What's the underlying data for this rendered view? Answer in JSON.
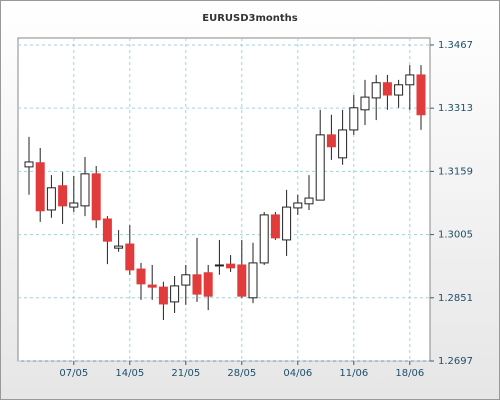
{
  "chart_data": {
    "type": "candlestick",
    "title": "EURUSD3months",
    "categories": [
      null,
      null,
      null,
      null,
      "07/05",
      null,
      null,
      null,
      null,
      "14/05",
      null,
      null,
      null,
      null,
      "21/05",
      null,
      null,
      null,
      null,
      "28/05",
      null,
      null,
      null,
      null,
      "04/06",
      null,
      null,
      null,
      null,
      "11/06",
      null,
      null,
      null,
      null,
      "18/06",
      null
    ],
    "open": [
      1.317,
      1.318,
      1.3065,
      1.3124,
      1.3072,
      1.3075,
      1.3153,
      1.3043,
      1.2972,
      1.2982,
      1.2921,
      1.2882,
      1.2877,
      1.2841,
      1.2882,
      1.2907,
      1.2912,
      1.2929,
      1.2933,
      1.2931,
      1.2851,
      1.2936,
      1.3053,
      1.2992,
      1.307,
      1.308,
      1.3089,
      1.3248,
      1.3192,
      1.326,
      1.3309,
      1.3338,
      1.3375,
      1.3345,
      1.337,
      1.3394
    ],
    "high": [
      1.3243,
      1.3216,
      1.315,
      1.3158,
      1.3148,
      1.3194,
      1.3172,
      1.305,
      1.3016,
      1.3028,
      1.2936,
      1.2931,
      1.289,
      1.2904,
      1.2931,
      1.2997,
      1.2931,
      1.2992,
      1.2955,
      1.2992,
      1.2985,
      1.306,
      1.306,
      1.3114,
      1.3102,
      1.315,
      1.3309,
      1.3297,
      1.3309,
      1.3345,
      1.3382,
      1.3394,
      1.3394,
      1.3382,
      1.3418,
      1.3418
    ],
    "low": [
      1.3102,
      1.3036,
      1.3046,
      1.3031,
      1.306,
      1.305,
      1.3021,
      1.2933,
      1.2963,
      1.2907,
      1.2846,
      1.2846,
      1.2797,
      1.2814,
      1.2834,
      1.2841,
      1.2821,
      1.2907,
      1.2914,
      1.2851,
      1.2838,
      1.2931,
      1.2992,
      1.2953,
      1.3053,
      1.3065,
      1.3089,
      1.3187,
      1.3175,
      1.3248,
      1.3272,
      1.3284,
      1.3309,
      1.3314,
      1.3309,
      1.326
    ],
    "close": [
      1.3182,
      1.3063,
      1.3119,
      1.3075,
      1.3082,
      1.3153,
      1.3041,
      1.2989,
      1.2977,
      1.2919,
      1.2885,
      1.2877,
      1.2836,
      1.288,
      1.2907,
      1.286,
      1.2855,
      1.2931,
      1.2924,
      1.2855,
      1.2936,
      1.3053,
      1.2997,
      1.3072,
      1.3082,
      1.3094,
      1.3248,
      1.3219,
      1.326,
      1.3314,
      1.334,
      1.3375,
      1.3345,
      1.337,
      1.3394,
      1.3297
    ],
    "up_color": "#ffffff",
    "down_color": "#e23b3b",
    "ylim": [
      1.2697,
      1.3484
    ],
    "yticks": [
      1.2697,
      1.2851,
      1.3005,
      1.3159,
      1.3313,
      1.3467
    ],
    "grid": true
  }
}
